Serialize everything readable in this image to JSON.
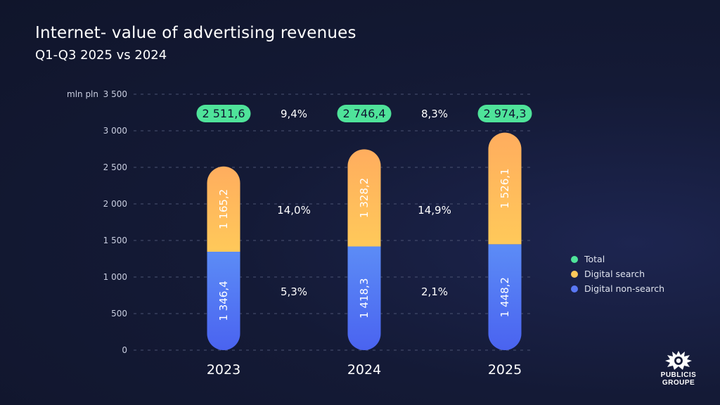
{
  "header": {
    "title": "Internet- value of advertising revenues",
    "subtitle": "Q1-Q3 2025 vs 2024"
  },
  "colors": {
    "total": "#4fe39a",
    "search": "#ffc95a",
    "search_top": "#ffad5e",
    "nonsearch": "#4a63f0",
    "nonsearch_light": "#5c8cf6"
  },
  "chart_data": {
    "type": "bar",
    "stacked": true,
    "unit_label": "mln pln",
    "categories": [
      "2023",
      "2024",
      "2025"
    ],
    "series": [
      {
        "name": "Digital non-search",
        "values": [
          1346.4,
          1418.3,
          1448.2
        ],
        "labels": [
          "1 346,4",
          "1 418,3",
          "1 448,2"
        ]
      },
      {
        "name": "Digital search",
        "values": [
          1165.2,
          1328.2,
          1526.1
        ],
        "labels": [
          "1 165,2",
          "1 328,2",
          "1 526,1"
        ]
      }
    ],
    "totals": {
      "name": "Total",
      "values": [
        2511.6,
        2746.4,
        2974.3
      ],
      "labels": [
        "2 511,6",
        "2 746,4",
        "2 974,3"
      ]
    },
    "growth": {
      "total": [
        "9,4%",
        "8,3%"
      ],
      "search": [
        "14,0%",
        "14,9%"
      ],
      "nonsearch": [
        "5,3%",
        "2,1%"
      ]
    },
    "ylim": [
      0,
      3500
    ],
    "yticks": [
      0,
      500,
      1000,
      1500,
      2000,
      2500,
      3000,
      3500
    ],
    "ytick_labels": [
      "0",
      "500",
      "1 000",
      "1 500",
      "2 000",
      "2 500",
      "3 000",
      "3 500"
    ],
    "grid": true,
    "legend_position": "right"
  },
  "logo": {
    "line1": "PUBLICIS",
    "line2": "GROUPE"
  }
}
